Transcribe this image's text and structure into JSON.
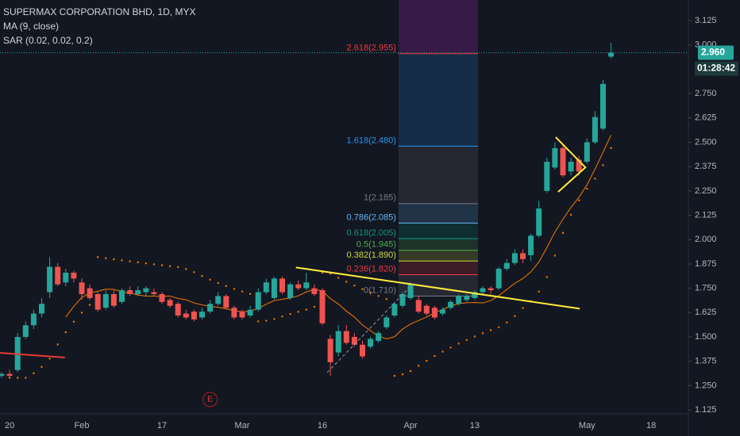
{
  "chart_data": {
    "type": "candlestick",
    "title": "SUPERMAX CORPORATION BHD, 1D, MYX",
    "indicators": [
      {
        "label": "MA (9, close)",
        "kind": "ma",
        "period": 9,
        "color": "#f57c00"
      },
      {
        "label": "SAR (0.02, 0.02, 0.2)",
        "kind": "sar",
        "params": [
          0.02,
          0.02,
          0.2
        ],
        "color": "#f57c00"
      }
    ],
    "categories": [
      null,
      "20",
      null,
      null,
      null,
      null,
      null,
      null,
      null,
      null,
      "Feb",
      null,
      null,
      null,
      null,
      null,
      null,
      null,
      null,
      null,
      "17",
      null,
      null,
      null,
      null,
      null,
      null,
      null,
      null,
      null,
      "Mar",
      null,
      null,
      null,
      null,
      null,
      null,
      null,
      null,
      null,
      "16",
      null,
      null,
      null,
      null,
      null,
      null,
      null,
      null,
      null,
      null,
      "Apr",
      null,
      null,
      null,
      null,
      null,
      null,
      null,
      "13",
      null,
      null,
      null,
      null,
      null,
      null,
      null,
      null,
      null,
      null,
      null,
      null,
      null,
      "May",
      null,
      null,
      null,
      null,
      null,
      null,
      null,
      "18",
      null,
      null,
      null,
      null
    ],
    "open": [
      1.3,
      1.31,
      1.33,
      1.5,
      1.56,
      1.62,
      1.73,
      1.86,
      1.78,
      1.83,
      1.78,
      1.75,
      1.72,
      1.65,
      1.72,
      1.68,
      1.74,
      1.72,
      1.73,
      1.73,
      1.72,
      1.69,
      1.67,
      1.62,
      1.63,
      1.6,
      1.63,
      1.67,
      1.71,
      1.65,
      1.63,
      1.61,
      1.64,
      1.73,
      1.7,
      1.8,
      1.7,
      1.77,
      1.75,
      1.75,
      1.74,
      1.49,
      1.42,
      1.53,
      1.5,
      1.46,
      1.45,
      1.48,
      1.55,
      1.61,
      1.66,
      1.7,
      1.69,
      1.66,
      1.65,
      1.62,
      1.65,
      1.67,
      1.69,
      1.7,
      1.73,
      1.75,
      1.75,
      1.85,
      1.88,
      1.93,
      1.92,
      2.02,
      2.25,
      2.37,
      2.47,
      2.35,
      2.41,
      2.4,
      2.5,
      2.57,
      2.94,
      null,
      null,
      null,
      null,
      null,
      null,
      null,
      null,
      null
    ],
    "high": [
      1.32,
      1.33,
      1.52,
      1.58,
      1.64,
      1.7,
      1.91,
      1.88,
      1.85,
      1.84,
      1.8,
      1.77,
      1.73,
      1.74,
      1.74,
      1.75,
      1.76,
      1.76,
      1.76,
      1.75,
      1.73,
      1.7,
      1.68,
      1.64,
      1.64,
      1.65,
      1.69,
      1.73,
      1.72,
      1.66,
      1.64,
      1.66,
      1.75,
      1.8,
      1.81,
      1.81,
      1.78,
      1.79,
      1.83,
      1.77,
      1.75,
      1.51,
      1.56,
      1.56,
      1.52,
      1.48,
      1.5,
      1.53,
      1.61,
      1.68,
      1.73,
      1.78,
      1.71,
      1.67,
      1.66,
      1.65,
      1.69,
      1.72,
      1.72,
      1.74,
      1.76,
      1.76,
      1.86,
      1.9,
      1.95,
      1.95,
      2.03,
      2.2,
      2.42,
      2.5,
      2.49,
      2.42,
      2.43,
      2.52,
      2.66,
      2.82,
      3.01,
      null,
      null,
      null,
      null,
      null,
      null,
      null,
      null,
      null
    ],
    "low": [
      1.29,
      1.29,
      1.32,
      1.49,
      1.54,
      1.6,
      1.7,
      1.76,
      1.76,
      1.78,
      1.69,
      1.69,
      1.63,
      1.64,
      1.65,
      1.67,
      1.71,
      1.71,
      1.71,
      1.71,
      1.67,
      1.65,
      1.6,
      1.59,
      1.58,
      1.59,
      1.62,
      1.66,
      1.64,
      1.59,
      1.59,
      1.6,
      1.63,
      1.72,
      1.69,
      1.72,
      1.69,
      1.74,
      1.74,
      1.71,
      1.56,
      1.3,
      1.4,
      1.46,
      1.45,
      1.39,
      1.44,
      1.47,
      1.54,
      1.6,
      1.65,
      1.69,
      1.62,
      1.61,
      1.59,
      1.61,
      1.64,
      1.66,
      1.68,
      1.69,
      1.72,
      1.72,
      1.74,
      1.84,
      1.87,
      1.88,
      1.89,
      2.01,
      2.24,
      2.36,
      2.32,
      2.33,
      2.33,
      2.39,
      2.49,
      2.56,
      2.93,
      null,
      null,
      null,
      null,
      null,
      null,
      null,
      null,
      null
    ],
    "close": [
      1.31,
      1.3,
      1.5,
      1.56,
      1.62,
      1.67,
      1.86,
      1.77,
      1.83,
      1.8,
      1.72,
      1.7,
      1.64,
      1.72,
      1.66,
      1.74,
      1.72,
      1.74,
      1.75,
      1.72,
      1.68,
      1.66,
      1.61,
      1.6,
      1.59,
      1.63,
      1.67,
      1.71,
      1.65,
      1.6,
      1.6,
      1.64,
      1.73,
      1.78,
      1.8,
      1.73,
      1.77,
      1.75,
      1.78,
      1.72,
      1.57,
      1.37,
      1.53,
      1.47,
      1.46,
      1.4,
      1.49,
      1.52,
      1.6,
      1.67,
      1.72,
      1.77,
      1.63,
      1.62,
      1.6,
      1.64,
      1.68,
      1.71,
      1.71,
      1.73,
      1.75,
      1.74,
      1.85,
      1.88,
      1.93,
      1.9,
      2.02,
      2.16,
      2.4,
      2.47,
      2.33,
      2.4,
      2.35,
      2.5,
      2.63,
      2.8,
      2.96,
      null,
      null,
      null,
      null,
      null,
      null,
      null,
      null,
      null
    ],
    "up_color": "#26a69a",
    "down_color": "#ef5350",
    "ylim": [
      1.105,
      3.231
    ],
    "yticks": [
      {
        "value": 1.125,
        "label": "1.125"
      },
      {
        "value": 1.25,
        "label": "1.250"
      },
      {
        "value": 1.375,
        "label": "1.375"
      },
      {
        "value": 1.5,
        "label": "1.500"
      },
      {
        "value": 1.625,
        "label": "1.625"
      },
      {
        "value": 1.75,
        "label": "1.750"
      },
      {
        "value": 1.875,
        "label": "1.875"
      },
      {
        "value": 2,
        "label": "2.000"
      },
      {
        "value": 2.125,
        "label": "2.125"
      },
      {
        "value": 2.25,
        "label": "2.250"
      },
      {
        "value": 2.375,
        "label": "2.375"
      },
      {
        "value": 2.5,
        "label": "2.500"
      },
      {
        "value": 2.625,
        "label": "2.625"
      },
      {
        "value": 2.75,
        "label": "2.750"
      },
      {
        "value": 3,
        "label": "3.000"
      },
      {
        "value": 3.125,
        "label": "3.125"
      }
    ],
    "last_price": {
      "value": 2.96,
      "label": "2.960",
      "color": "#26a69a"
    },
    "countdown": "01:28:42",
    "fib": {
      "range": [
        49.5,
        59.4
      ],
      "top_color": "#9c27b0",
      "levels": [
        {
          "label": "2.618(2.955)",
          "value": 2.955,
          "color": "#f23645"
        },
        {
          "label": "1.618(2.480)",
          "value": 2.48,
          "color": "#2196f3"
        },
        {
          "label": "1(2.185)",
          "value": 2.185,
          "color": "#787b86"
        },
        {
          "label": "0.786(2.085)",
          "value": 2.085,
          "color": "#64b5f6"
        },
        {
          "label": "0.618(2.005)",
          "value": 2.005,
          "color": "#089981"
        },
        {
          "label": "0.5(1.945)",
          "value": 1.945,
          "color": "#4caf50"
        },
        {
          "label": "0.382(1.890)",
          "value": 1.89,
          "color": "#cddc39"
        },
        {
          "label": "0.236(1.820)",
          "value": 1.82,
          "color": "#f23645"
        },
        {
          "label": "0(1.710)",
          "value": 1.71,
          "color": "#787b86"
        }
      ]
    },
    "drawings": [
      {
        "color": "#ffeb3b",
        "x": [
          36.7,
          72.1
        ],
        "y": [
          1.857,
          1.645
        ]
      },
      {
        "color": "#e53935",
        "x": [
          -0.2,
          7.9
        ],
        "y": [
          1.418,
          1.394
        ]
      },
      {
        "color": "#ffeb3b",
        "x": [
          69.1,
          72.8,
          69.4
        ],
        "y": [
          2.526,
          2.371,
          2.245
        ]
      },
      {
        "color": "#9598a1",
        "dashed": true,
        "x": [
          40.6,
          51.3
        ],
        "y": [
          1.317,
          1.773
        ]
      }
    ],
    "earnings": {
      "label": "E",
      "index": 26
    }
  }
}
